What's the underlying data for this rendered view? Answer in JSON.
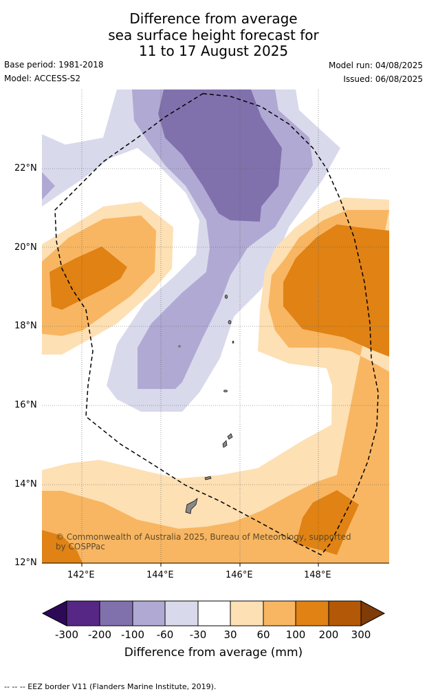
{
  "title": {
    "line1": "Difference from average",
    "line2": "sea surface height forecast for",
    "line3": "11 to 17 August 2025"
  },
  "meta": {
    "base_period": "Base period: 1981-2018",
    "model": "Model: ACCESS-S2",
    "model_run": "Model run: 04/08/2025",
    "issued": "Issued: 06/08/2025"
  },
  "map": {
    "lat_labels": [
      "22°N",
      "20°N",
      "18°N",
      "16°N",
      "14°N",
      "12°N"
    ],
    "lon_labels": [
      "142°E",
      "144°E",
      "146°E",
      "148°E"
    ],
    "copyright": "© Commonwealth of Australia 2025, Bureau of Meteorology, supported by COSPPac",
    "colors": {
      "neg300": "#2d0a57",
      "neg200": "#562785",
      "neg100": "#8071ad",
      "neg60": "#b0a9d3",
      "neg30": "#d9d9ec",
      "zero": "#ffffff",
      "pos30": "#fde0b4",
      "pos60": "#f8b662",
      "pos100": "#e08214",
      "pos200": "#b35806",
      "pos300": "#7f3b08"
    }
  },
  "colorbar": {
    "ticks": [
      "-300",
      "-200",
      "-100",
      "-60",
      "-30",
      "30",
      "60",
      "100",
      "200",
      "300"
    ],
    "title": "Difference from average (mm)"
  },
  "footer": "--  --  -- EEZ border V11 (Flanders Marine Institute, 2019)."
}
